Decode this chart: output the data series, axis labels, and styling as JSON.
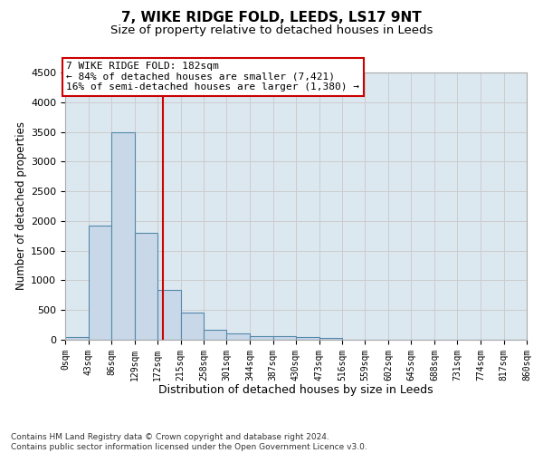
{
  "title_line1": "7, WIKE RIDGE FOLD, LEEDS, LS17 9NT",
  "title_line2": "Size of property relative to detached houses in Leeds",
  "xlabel": "Distribution of detached houses by size in Leeds",
  "ylabel": "Number of detached properties",
  "bar_edges": [
    0,
    43,
    86,
    129,
    172,
    215,
    258,
    301,
    344,
    387,
    430,
    473,
    516,
    559,
    602,
    645,
    688,
    731,
    774,
    817,
    860
  ],
  "bar_heights": [
    50,
    1920,
    3500,
    1800,
    840,
    460,
    165,
    100,
    65,
    55,
    40,
    35,
    0,
    0,
    0,
    0,
    0,
    0,
    0,
    0
  ],
  "bar_color": "#c8d8e8",
  "bar_edgecolor": "#5588aa",
  "vline_x": 182,
  "vline_color": "#cc0000",
  "annotation_line1": "7 WIKE RIDGE FOLD: 182sqm",
  "annotation_line2": "← 84% of detached houses are smaller (7,421)",
  "annotation_line3": "16% of semi-detached houses are larger (1,380) →",
  "annotation_box_edgecolor": "#cc0000",
  "annotation_box_facecolor": "#ffffff",
  "ylim_max": 4500,
  "yticks": [
    0,
    500,
    1000,
    1500,
    2000,
    2500,
    3000,
    3500,
    4000,
    4500
  ],
  "grid_color": "#cccccc",
  "plot_bgcolor": "#dce8f0",
  "footer_line1": "Contains HM Land Registry data © Crown copyright and database right 2024.",
  "footer_line2": "Contains public sector information licensed under the Open Government Licence v3.0.",
  "annotation_fontsize": 8.0,
  "title1_fontsize": 11,
  "title2_fontsize": 9.5,
  "ylabel_fontsize": 8.5,
  "xlabel_fontsize": 9,
  "ytick_fontsize": 8,
  "xtick_fontsize": 7
}
